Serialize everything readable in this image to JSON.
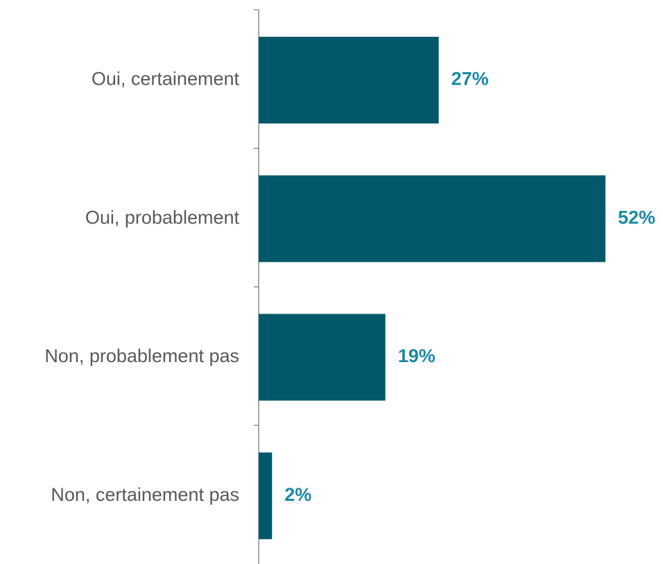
{
  "chart_data": {
    "type": "bar",
    "orientation": "horizontal",
    "categories": [
      "Oui, certainement",
      "Oui, probablement",
      "Non, probablement pas",
      "Non, certainement pas"
    ],
    "values": [
      27,
      52,
      19,
      2
    ],
    "value_labels": [
      "27%",
      "52%",
      "19%",
      "2%"
    ],
    "unit": "%",
    "xlim": [
      0,
      52
    ],
    "grid": false,
    "legend": "none",
    "colors": {
      "bar": "#03586b",
      "value_label": "#1a8aa3",
      "category_label": "#595959",
      "axis": "#8c8c8c"
    }
  }
}
